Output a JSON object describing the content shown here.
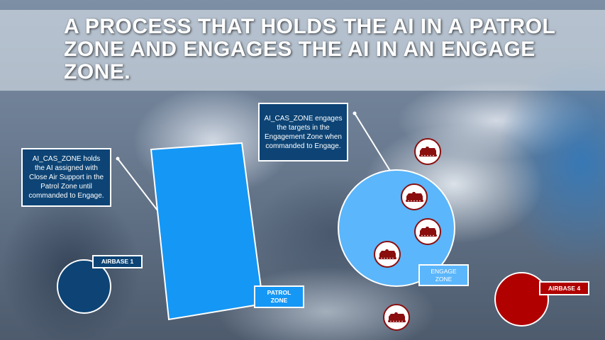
{
  "slide": {
    "title": "A PROCESS THAT HOLDS THE AI IN A PATROL ZONE AND ENGAGES THE AI IN AN ENGAGE ZONE."
  },
  "callouts": {
    "patrol": "AI_CAS_ZONE holds the AI assigned with Close Air Support in the Patrol Zone until commanded to Engage.",
    "engage": "AI_CAS_ZONE engages the targets in the Engagement Zone when commanded to Engage."
  },
  "labels": {
    "airbase1": "AIRBASE 1",
    "patrol_zone_line1": "PATROL",
    "patrol_zone_line2": "ZONE",
    "engage_zone_line1": "ENGAGE",
    "engage_zone_line2": "ZONE",
    "airbase4": "AIRBASE 4"
  },
  "colors": {
    "callout_bg": "#0d4475",
    "patrol_zone": "#1597f5",
    "engage_zone": "#5bb6fb",
    "airbase1": "#0d4475",
    "airbase4": "#b00000",
    "enemy_unit": "#8a0e0e"
  },
  "icons": {
    "enemy_unit": "tank-icon"
  }
}
